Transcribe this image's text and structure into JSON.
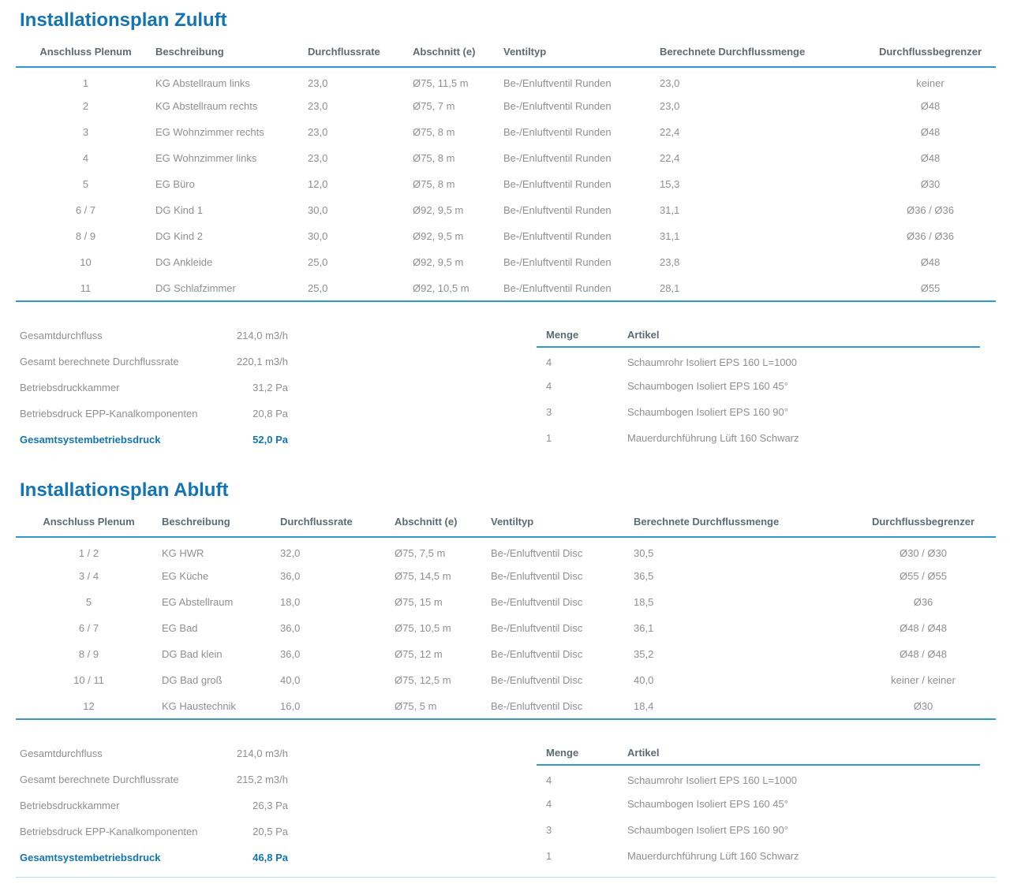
{
  "page": {
    "colors": {
      "accent": "#1274b2",
      "rule": "#2e9ace"
    },
    "sections": [
      {
        "title": "Installationsplan Zuluft",
        "columns": [
          "Anschluss Plenum",
          "Beschreibung",
          "Durchflussrate",
          "Abschnitt (e)",
          "Ventiltyp",
          "Berechnete Durchflussmenge",
          "Durchflussbegrenzer"
        ],
        "rows": [
          [
            "1",
            "KG Abstellraum links",
            "23,0",
            "Ø75, 11,5 m",
            "Be-/Enluftventil Runden",
            "23,0",
            "keiner"
          ],
          [
            "2",
            "KG Abstellraum rechts",
            "23,0",
            "Ø75, 7 m",
            "Be-/Enluftventil Runden",
            "23,0",
            "Ø48"
          ],
          [
            "3",
            "EG Wohnzimmer rechts",
            "23,0",
            "Ø75, 8 m",
            "Be-/Enluftventil Runden",
            "22,4",
            "Ø48"
          ],
          [
            "4",
            "EG Wohnzimmer links",
            "23,0",
            "Ø75, 8 m",
            "Be-/Enluftventil Runden",
            "22,4",
            "Ø48"
          ],
          [
            "5",
            "EG Büro",
            "12,0",
            "Ø75, 8 m",
            "Be-/Enluftventil Runden",
            "15,3",
            "Ø30"
          ],
          [
            "6  /  7",
            "DG Kind 1",
            "30,0",
            "Ø92, 9,5 m",
            "Be-/Enluftventil Runden",
            "31,1",
            "Ø36  /  Ø36"
          ],
          [
            "8  /  9",
            "DG Kind 2",
            "30,0",
            "Ø92, 9,5 m",
            "Be-/Enluftventil Runden",
            "31,1",
            "Ø36  /  Ø36"
          ],
          [
            "10",
            "DG Ankleide",
            "25,0",
            "Ø92, 9,5 m",
            "Be-/Enluftventil Runden",
            "23,8",
            "Ø48"
          ],
          [
            "11",
            "DG Schlafzimmer",
            "25,0",
            "Ø92, 10,5 m",
            "Be-/Enluftventil Runden",
            "28,1",
            "Ø55"
          ]
        ],
        "summary": [
          {
            "label": "Gesamtdurchfluss",
            "value": "214,0 m3/h",
            "highlight": false
          },
          {
            "label": "Gesamt berechnete Durchflussrate",
            "value": "220,1 m3/h",
            "highlight": false
          },
          {
            "label": "Betriebsdruckkammer",
            "value": "31,2 Pa",
            "highlight": false
          },
          {
            "label": "Betriebsdruck EPP-Kanalkomponenten",
            "value": "20,8 Pa",
            "highlight": false
          },
          {
            "label": "Gesamtsystembetriebsdruck",
            "value": "52,0 Pa",
            "highlight": true
          }
        ],
        "articles": {
          "columns": [
            "Menge",
            "Artikel"
          ],
          "rows": [
            [
              "4",
              "Schaumrohr Isoliert EPS 160 L=1000"
            ],
            [
              "4",
              "Schaumbogen Isoliert EPS 160 45°"
            ],
            [
              "3",
              "Schaumbogen Isoliert EPS 160 90°"
            ],
            [
              "1",
              "Mauerdurchführung Lüft 160 Schwarz"
            ]
          ]
        }
      },
      {
        "title": "Installationsplan Abluft",
        "columns": [
          "Anschluss Plenum",
          "Beschreibung",
          "Durchflussrate",
          "Abschnitt (e)",
          "Ventiltyp",
          "Berechnete Durchflussmenge",
          "Durchflussbegrenzer"
        ],
        "rows": [
          [
            "1  /  2",
            "KG HWR",
            "32,0",
            "Ø75, 7,5 m",
            "Be-/Enluftventil Disc",
            "30,5",
            "Ø30  /  Ø30"
          ],
          [
            "3  /  4",
            "EG Küche",
            "36,0",
            "Ø75, 14,5 m",
            "Be-/Enluftventil Disc",
            "36,5",
            "Ø55  /  Ø55"
          ],
          [
            "5",
            "EG Abstellraum",
            "18,0",
            "Ø75, 15 m",
            "Be-/Enluftventil Disc",
            "18,5",
            "Ø36"
          ],
          [
            "6  /  7",
            "EG Bad",
            "36,0",
            "Ø75, 10,5 m",
            "Be-/Enluftventil Disc",
            "36,1",
            "Ø48  /  Ø48"
          ],
          [
            "8  /  9",
            "DG Bad klein",
            "36,0",
            "Ø75, 12 m",
            "Be-/Enluftventil Disc",
            "35,2",
            "Ø48  /  Ø48"
          ],
          [
            "10  /  11",
            "DG Bad groß",
            "40,0",
            "Ø75, 12,5 m",
            "Be-/Enluftventil Disc",
            "40,0",
            "keiner  /  keiner"
          ],
          [
            "12",
            "KG Haustechnik",
            "16,0",
            "Ø75, 5 m",
            "Be-/Enluftventil Disc",
            "18,4",
            "Ø30"
          ]
        ],
        "summary": [
          {
            "label": "Gesamtdurchfluss",
            "value": "214,0 m3/h",
            "highlight": false
          },
          {
            "label": "Gesamt berechnete Durchflussrate",
            "value": "215,2 m3/h",
            "highlight": false
          },
          {
            "label": "Betriebsdruckkammer",
            "value": "26,3 Pa",
            "highlight": false
          },
          {
            "label": "Betriebsdruck EPP-Kanalkomponenten",
            "value": "20,5 Pa",
            "highlight": false
          },
          {
            "label": "Gesamtsystembetriebsdruck",
            "value": "46,8 Pa",
            "highlight": true
          }
        ],
        "articles": {
          "columns": [
            "Menge",
            "Artikel"
          ],
          "rows": [
            [
              "4",
              "Schaumrohr Isoliert EPS 160 L=1000"
            ],
            [
              "4",
              "Schaumbogen Isoliert EPS 160 45°"
            ],
            [
              "3",
              "Schaumbogen Isoliert EPS 160 90°"
            ],
            [
              "1",
              "Mauerdurchführung Lüft 160 Schwarz"
            ]
          ]
        }
      }
    ]
  }
}
